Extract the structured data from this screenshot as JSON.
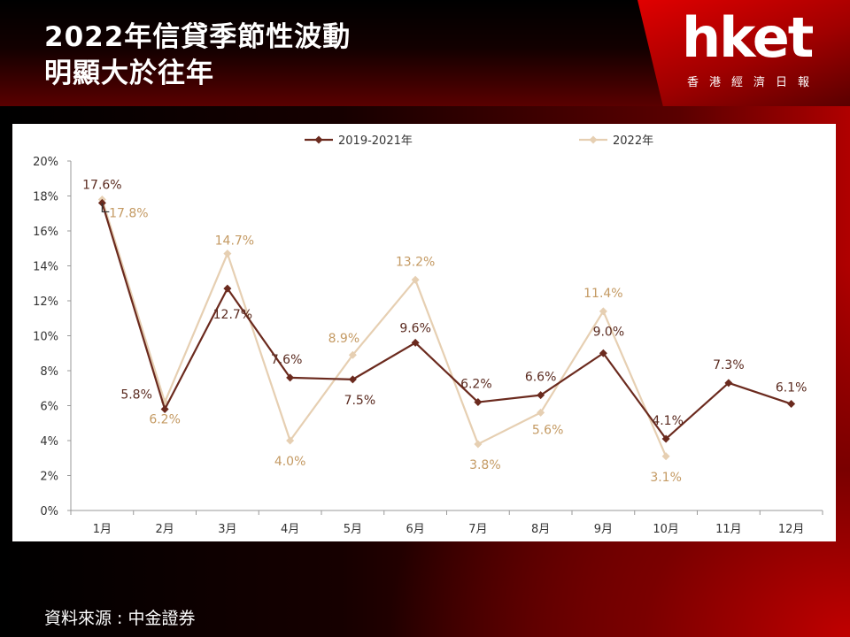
{
  "header": {
    "title_line1": "2022年信貸季節性波動",
    "title_line2": "明顯大於往年"
  },
  "logo": {
    "name": "hket",
    "subtitle": "香港經濟日報"
  },
  "footer": {
    "source": "資料來源 : 中金證券"
  },
  "colors": {
    "series_2019_2021": "#6b2a1e",
    "series_2022": "#e6cfb2",
    "label_2022": "#c49a63",
    "label_2019_2021": "#5a2a1f",
    "accent_red": "#c00000"
  },
  "chart_data": {
    "type": "line",
    "categories": [
      "1月",
      "2月",
      "3月",
      "4月",
      "5月",
      "6月",
      "7月",
      "8月",
      "9月",
      "10月",
      "11月",
      "12月"
    ],
    "series": [
      {
        "name": "2019-2021年",
        "values": [
          17.6,
          5.8,
          12.7,
          7.6,
          7.5,
          9.6,
          6.2,
          6.6,
          9.0,
          4.1,
          7.3,
          6.1
        ],
        "labels": [
          "17.6%",
          "5.8%",
          "12.7%",
          "7.6%",
          "7.5%",
          "9.6%",
          "6.2%",
          "6.6%",
          "9.0%",
          "4.1%",
          "7.3%",
          "6.1%"
        ],
        "marker": "diamond"
      },
      {
        "name": "2022年",
        "values": [
          17.8,
          6.2,
          14.7,
          4.0,
          8.9,
          13.2,
          3.8,
          5.6,
          11.4,
          3.1,
          null,
          null
        ],
        "labels": [
          "17.8%",
          "6.2%",
          "14.7%",
          "4.0%",
          "8.9%",
          "13.2%",
          "3.8%",
          "5.6%",
          "11.4%",
          "3.1%",
          "",
          ""
        ],
        "marker": "diamond"
      }
    ],
    "ylim": [
      0,
      20
    ],
    "yticks": [
      "0%",
      "2%",
      "4%",
      "6%",
      "8%",
      "10%",
      "12%",
      "14%",
      "16%",
      "18%",
      "20%"
    ],
    "legend_position": "top",
    "grid": false
  }
}
